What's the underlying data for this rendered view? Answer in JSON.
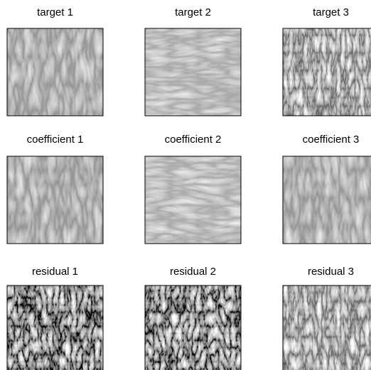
{
  "panels": [
    {
      "title": "target 1"
    },
    {
      "title": "target 2"
    },
    {
      "title": "target 3"
    },
    {
      "title": "coefficient 1"
    },
    {
      "title": "coefficient 2"
    },
    {
      "title": "coefficient 3"
    },
    {
      "title": "residual 1"
    },
    {
      "title": "residual 2"
    },
    {
      "title": "residual 3"
    }
  ]
}
